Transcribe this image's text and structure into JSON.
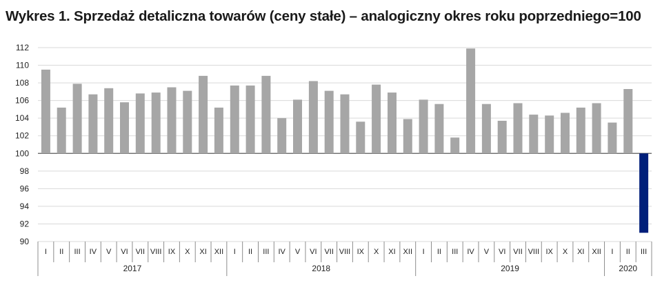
{
  "chart_data": {
    "type": "bar",
    "title": "Wykres 1. Sprzedaż detaliczna towarów (ceny stałe) – analogiczny okres roku poprzedniego=100",
    "xlabel": "",
    "ylabel": "",
    "ylim": [
      90,
      112
    ],
    "yticks": [
      "90",
      "92",
      "94",
      "96",
      "98",
      "100",
      "102",
      "104",
      "106",
      "108",
      "110",
      "112"
    ],
    "baseline": 100,
    "grid": true,
    "legend": "none",
    "bar_color": "#a6a6a6",
    "highlight_color": "#001f7a",
    "categories": [
      "I",
      "II",
      "III",
      "IV",
      "V",
      "VI",
      "VII",
      "VIII",
      "IX",
      "X",
      "XI",
      "XII",
      "I",
      "II",
      "III",
      "IV",
      "V",
      "VI",
      "VII",
      "VIII",
      "IX",
      "X",
      "XI",
      "XII",
      "I",
      "II",
      "III",
      "IV",
      "V",
      "VI",
      "VII",
      "VIII",
      "IX",
      "X",
      "XI",
      "XII",
      "I",
      "II",
      "III"
    ],
    "years": [
      {
        "label": "2017",
        "count": 12
      },
      {
        "label": "2018",
        "count": 12
      },
      {
        "label": "2019",
        "count": 12
      },
      {
        "label": "2020",
        "count": 3
      }
    ],
    "values": [
      109.5,
      105.2,
      107.9,
      106.7,
      107.4,
      105.8,
      106.8,
      106.9,
      107.5,
      107.1,
      108.8,
      105.2,
      107.7,
      107.7,
      108.8,
      104.0,
      106.1,
      108.2,
      107.1,
      106.7,
      103.6,
      107.8,
      106.9,
      103.9,
      106.1,
      105.6,
      101.8,
      111.9,
      105.6,
      103.7,
      105.7,
      104.4,
      104.3,
      104.6,
      105.2,
      105.7,
      103.5,
      107.3,
      91.0
    ],
    "highlight_index": 38
  }
}
